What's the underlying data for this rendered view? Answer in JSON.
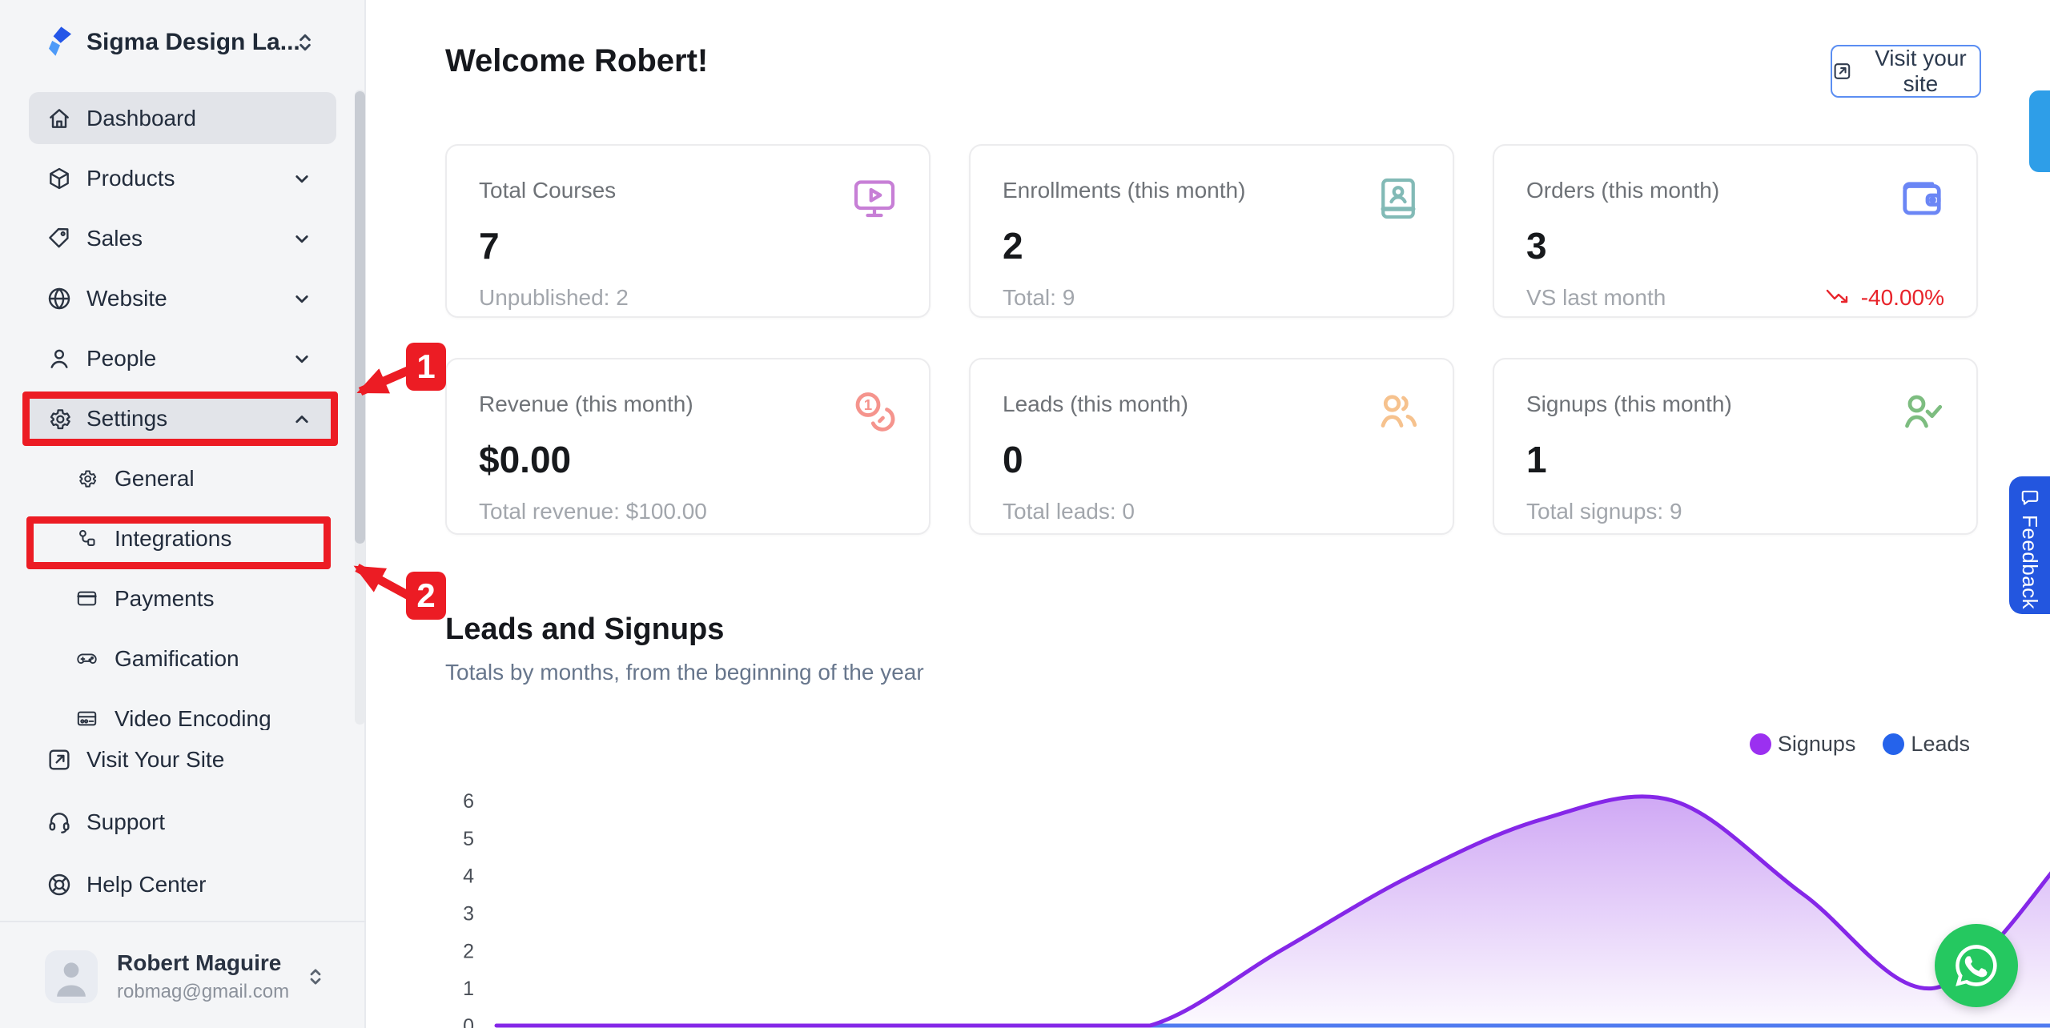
{
  "workspace": {
    "name": "Sigma Design La..."
  },
  "sidebar": {
    "items": [
      {
        "label": "Dashboard",
        "icon": "home-icon",
        "active": true
      },
      {
        "label": "Products",
        "icon": "box-icon",
        "chevron": "down"
      },
      {
        "label": "Sales",
        "icon": "tag-icon",
        "chevron": "down"
      },
      {
        "label": "Website",
        "icon": "globe-icon",
        "chevron": "down"
      },
      {
        "label": "People",
        "icon": "person-icon",
        "chevron": "down"
      },
      {
        "label": "Settings",
        "icon": "gear-icon",
        "chevron": "up",
        "active": true,
        "annotated_step": "1"
      }
    ],
    "settings_children": [
      {
        "label": "General",
        "icon": "gear-icon"
      },
      {
        "label": "Integrations",
        "icon": "integration-nodes-icon",
        "annotated_step": "2"
      },
      {
        "label": "Payments",
        "icon": "credit-card-icon"
      },
      {
        "label": "Gamification",
        "icon": "gamepad-icon"
      },
      {
        "label": "Video Encoding",
        "icon": "video-monitor-icon",
        "clipped": true
      }
    ],
    "footer_items": [
      {
        "label": "Visit Your Site",
        "icon": "external-link-icon"
      },
      {
        "label": "Support",
        "icon": "headset-icon"
      },
      {
        "label": "Help Center",
        "icon": "life-buoy-icon"
      }
    ],
    "profile": {
      "name": "Robert Maguire",
      "email": "robmag@gmail.com"
    }
  },
  "header": {
    "title": "Welcome Robert!",
    "visit_site_button": "Visit your site"
  },
  "stat_cards": [
    {
      "label": "Total Courses",
      "value": "7",
      "sub": "Unpublished: 2",
      "icon": "monitor-play-icon",
      "icon_color": "#c77fd6"
    },
    {
      "label": "Enrollments (this month)",
      "value": "2",
      "sub": "Total: 9",
      "icon": "book-user-icon",
      "icon_color": "#82bab6"
    },
    {
      "label": "Orders (this month)",
      "value": "3",
      "sub": "VS last month",
      "trend": "-40.00%",
      "trend_color": "#e8242b",
      "icon": "wallet-icon",
      "icon_color": "#6b86f5"
    },
    {
      "label": "Revenue (this month)",
      "value": "$0.00",
      "sub": "Total revenue: $100.00",
      "icon": "coins-icon",
      "icon_color": "#f5948d"
    },
    {
      "label": "Leads (this month)",
      "value": "0",
      "sub": "Total leads: 0",
      "icon": "users-icon",
      "icon_color": "#f6c28e"
    },
    {
      "label": "Signups (this month)",
      "value": "1",
      "sub": "Total signups: 9",
      "icon": "user-check-icon",
      "icon_color": "#7dbd80"
    }
  ],
  "section": {
    "title": "Leads and Signups",
    "subtitle": "Totals by months, from the beginning of the year"
  },
  "legend": [
    {
      "label": "Signups",
      "color": "#9b30f0"
    },
    {
      "label": "Leads",
      "color": "#2563eb"
    }
  ],
  "chart_data": {
    "type": "area",
    "x_axis": "months from beginning of year (month labels clipped below viewport)",
    "yticks": [
      0,
      1,
      2,
      3,
      4,
      5,
      6
    ],
    "ylim": [
      0,
      6
    ],
    "grid": false,
    "legend_position": "top-right",
    "series": [
      {
        "name": "Signups",
        "color": "#8527e8",
        "values": [
          0,
          0,
          0,
          0,
          0,
          0,
          2,
          4,
          5.5,
          6,
          3.5,
          1
        ],
        "clipped_right_next_value": 4.5
      },
      {
        "name": "Leads",
        "color": "#4f7df0",
        "values": [
          0,
          0,
          0,
          0,
          0,
          0,
          0,
          0,
          0,
          0,
          0,
          0
        ]
      }
    ]
  },
  "annotations": {
    "step1_label": "1",
    "step2_label": "2",
    "color": "#ec1c24"
  },
  "feedback_tab": {
    "label": "Feedback",
    "color": "#2356df"
  },
  "whatsapp_button": {
    "icon": "whatsapp-icon",
    "color": "#25c860"
  }
}
